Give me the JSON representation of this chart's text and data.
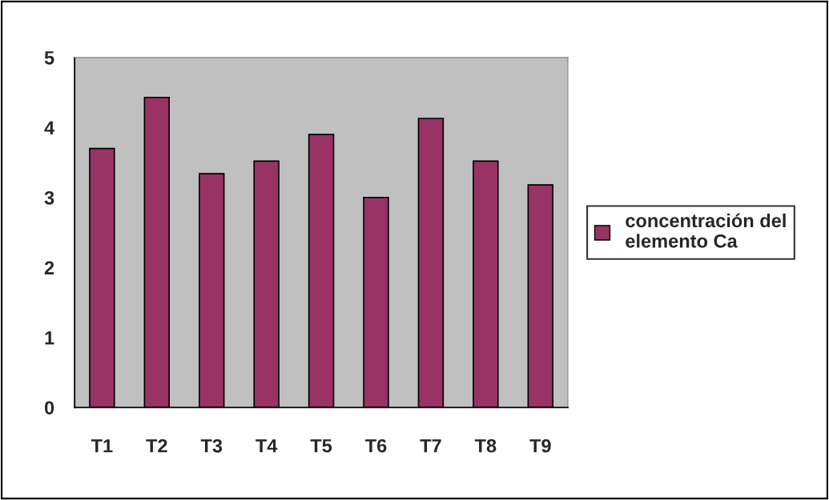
{
  "chart_data": {
    "type": "bar",
    "categories": [
      "T1",
      "T2",
      "T3",
      "T4",
      "T5",
      "T6",
      "T7",
      "T8",
      "T9"
    ],
    "series": [
      {
        "name": "concentración del elemento Ca",
        "color": "#993366",
        "values": [
          3.7,
          4.43,
          3.34,
          3.52,
          3.9,
          3.0,
          4.13,
          3.52,
          3.18
        ]
      }
    ],
    "ylim": [
      0,
      5
    ],
    "yticks": [
      0,
      1,
      2,
      3,
      4,
      5
    ],
    "grid": false,
    "legend": "right"
  }
}
